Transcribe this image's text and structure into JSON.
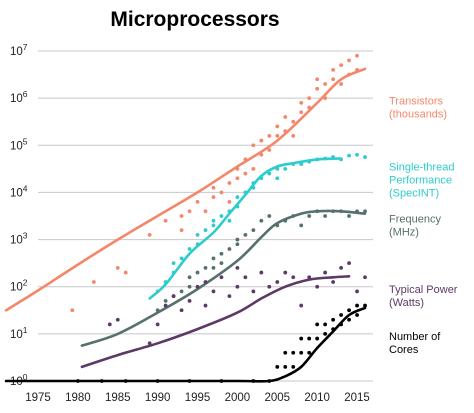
{
  "chart_data": {
    "type": "scatter",
    "title": "Microprocessors",
    "xlabel": "",
    "ylabel": "",
    "y_scale": "log",
    "xlim": [
      1975,
      2017
    ],
    "ylim_exponent": [
      0,
      7
    ],
    "grid": "horizontal",
    "legend": "right",
    "x_ticks": [
      "1975",
      "1980",
      "1985",
      "1990",
      "1995",
      "2000",
      "2005",
      "2010",
      "2015"
    ],
    "y_ticks": [
      {
        "base": "10",
        "exp": "0"
      },
      {
        "base": "10",
        "exp": "1"
      },
      {
        "base": "10",
        "exp": "2"
      },
      {
        "base": "10",
        "exp": "3"
      },
      {
        "base": "10",
        "exp": "4"
      },
      {
        "base": "10",
        "exp": "5"
      },
      {
        "base": "10",
        "exp": "6"
      },
      {
        "base": "10",
        "exp": "7"
      }
    ],
    "series": [
      {
        "name": "Transistors (thousands)",
        "label_lines": [
          "Transistors",
          "(thousands)"
        ],
        "color": "#f4876a",
        "trend": [
          [
            1971,
            1.5
          ],
          [
            1975,
            1.92
          ],
          [
            1980,
            2.47
          ],
          [
            1985,
            3.0
          ],
          [
            1990,
            3.5
          ],
          [
            1995,
            4.0
          ],
          [
            2000,
            4.55
          ],
          [
            2005,
            5.1
          ],
          [
            2010,
            5.9
          ],
          [
            2013,
            6.4
          ],
          [
            2016,
            6.62
          ]
        ],
        "points": [
          [
            1979.3,
            1.5
          ],
          [
            1982,
            2.1
          ],
          [
            1985,
            2.4
          ],
          [
            1986,
            2.3
          ],
          [
            1989,
            3.1
          ],
          [
            1991,
            3.4
          ],
          [
            1993,
            3.5
          ],
          [
            1993,
            3.2
          ],
          [
            1994,
            3.6
          ],
          [
            1995,
            3.8
          ],
          [
            1996,
            3.6
          ],
          [
            1997,
            3.9
          ],
          [
            1997,
            4.1
          ],
          [
            1998,
            4.0
          ],
          [
            1999,
            3.8
          ],
          [
            1999,
            4.2
          ],
          [
            2000,
            4.3
          ],
          [
            2000,
            4.5
          ],
          [
            2001,
            4.4
          ],
          [
            2001,
            4.7
          ],
          [
            2002,
            4.5
          ],
          [
            2002,
            5.0
          ],
          [
            2003,
            4.8
          ],
          [
            2003,
            5.1
          ],
          [
            2004,
            5.2
          ],
          [
            2004,
            4.9
          ],
          [
            2005,
            5.2
          ],
          [
            2005,
            5.4
          ],
          [
            2006,
            5.3
          ],
          [
            2006,
            5.6
          ],
          [
            2007,
            5.5
          ],
          [
            2007,
            5.2
          ],
          [
            2008,
            5.7
          ],
          [
            2008,
            5.9
          ],
          [
            2009,
            6.0
          ],
          [
            2009,
            5.8
          ],
          [
            2010,
            6.2
          ],
          [
            2010,
            6.4
          ],
          [
            2011,
            6.3
          ],
          [
            2011,
            6.0
          ],
          [
            2012,
            6.4
          ],
          [
            2012,
            6.6
          ],
          [
            2013,
            6.3
          ],
          [
            2013,
            6.7
          ],
          [
            2014,
            6.8
          ],
          [
            2014,
            6.5
          ],
          [
            2015,
            6.9
          ],
          [
            2015,
            6.6
          ]
        ]
      },
      {
        "name": "Single-thread Performance (SpecINT)",
        "label_lines": [
          "Single-thread",
          "Performance",
          "(SpecINT)"
        ],
        "color": "#2ecccc",
        "trend": [
          [
            1989,
            1.75
          ],
          [
            1991,
            2.05
          ],
          [
            1994,
            2.7
          ],
          [
            1997,
            3.15
          ],
          [
            1999,
            3.55
          ],
          [
            2001,
            3.95
          ],
          [
            2003,
            4.35
          ],
          [
            2005,
            4.55
          ],
          [
            2007,
            4.62
          ],
          [
            2010,
            4.7
          ],
          [
            2013,
            4.72
          ]
        ],
        "points": [
          [
            1990,
            1.9
          ],
          [
            1991,
            2.1
          ],
          [
            1992,
            2.3
          ],
          [
            1992,
            2.5
          ],
          [
            1993,
            2.6
          ],
          [
            1994,
            2.8
          ],
          [
            1995,
            2.9
          ],
          [
            1995,
            3.1
          ],
          [
            1996,
            3.2
          ],
          [
            1997,
            3.3
          ],
          [
            1997,
            3.4
          ],
          [
            1998,
            3.5
          ],
          [
            1999,
            3.6
          ],
          [
            1999,
            3.4
          ],
          [
            2000,
            3.7
          ],
          [
            2000,
            3.9
          ],
          [
            2001,
            4.0
          ],
          [
            2002,
            4.1
          ],
          [
            2002,
            4.2
          ],
          [
            2003,
            4.3
          ],
          [
            2004,
            4.4
          ],
          [
            2005,
            4.5
          ],
          [
            2005,
            4.3
          ],
          [
            2006,
            4.5
          ],
          [
            2007,
            4.6
          ],
          [
            2008,
            4.6
          ],
          [
            2009,
            4.65
          ],
          [
            2010,
            4.7
          ],
          [
            2011,
            4.72
          ],
          [
            2012,
            4.75
          ],
          [
            2013,
            4.7
          ],
          [
            2014,
            4.78
          ],
          [
            2015,
            4.8
          ],
          [
            2016,
            4.75
          ]
        ]
      },
      {
        "name": "Frequency (MHz)",
        "label_lines": [
          "Frequency",
          "(MHz)"
        ],
        "color": "#56706e",
        "trend": [
          [
            1980.5,
            0.75
          ],
          [
            1985,
            1.0
          ],
          [
            1990,
            1.45
          ],
          [
            1995,
            1.95
          ],
          [
            2000,
            2.55
          ],
          [
            2003,
            3.05
          ],
          [
            2005,
            3.35
          ],
          [
            2008,
            3.55
          ],
          [
            2010,
            3.6
          ],
          [
            2013,
            3.6
          ],
          [
            2016,
            3.55
          ]
        ],
        "points": [
          [
            1990,
            1.5
          ],
          [
            1991,
            1.7
          ],
          [
            1992,
            1.8
          ],
          [
            1993,
            1.9
          ],
          [
            1994,
            2.0
          ],
          [
            1994,
            2.2
          ],
          [
            1995,
            2.3
          ],
          [
            1996,
            2.4
          ],
          [
            1997,
            2.4
          ],
          [
            1997,
            2.6
          ],
          [
            1998,
            2.7
          ],
          [
            1998,
            2.5
          ],
          [
            1999,
            2.8
          ],
          [
            2000,
            2.9
          ],
          [
            2000,
            3.0
          ],
          [
            2001,
            3.1
          ],
          [
            2002,
            3.2
          ],
          [
            2003,
            3.4
          ],
          [
            2004,
            3.5
          ],
          [
            2005,
            3.3
          ],
          [
            2006,
            3.4
          ],
          [
            2007,
            3.5
          ],
          [
            2008,
            3.3
          ],
          [
            2009,
            3.5
          ],
          [
            2010,
            3.6
          ],
          [
            2011,
            3.5
          ],
          [
            2012,
            3.6
          ],
          [
            2013,
            3.6
          ],
          [
            2014,
            3.5
          ],
          [
            2015,
            3.6
          ],
          [
            2016,
            3.6
          ]
        ]
      },
      {
        "name": "Typical Power (Watts)",
        "label_lines": [
          "Typical Power",
          "(Watts)"
        ],
        "color": "#5c3966",
        "trend": [
          [
            1980.5,
            0.3
          ],
          [
            1985,
            0.55
          ],
          [
            1990,
            0.8
          ],
          [
            1995,
            1.1
          ],
          [
            2000,
            1.45
          ],
          [
            2003,
            1.75
          ],
          [
            2006,
            2.0
          ],
          [
            2009,
            2.15
          ],
          [
            2012,
            2.2
          ],
          [
            2014,
            2.22
          ]
        ],
        "points": [
          [
            1984,
            1.2
          ],
          [
            1985,
            1.3
          ],
          [
            1989,
            0.8
          ],
          [
            1990,
            1.2
          ],
          [
            1991,
            1.6
          ],
          [
            1992,
            1.8
          ],
          [
            1993,
            1.5
          ],
          [
            1994,
            1.7
          ],
          [
            1995,
            2.0
          ],
          [
            1996,
            1.6
          ],
          [
            1996,
            2.1
          ],
          [
            1997,
            1.9
          ],
          [
            1998,
            2.2
          ],
          [
            1999,
            1.8
          ],
          [
            2000,
            2.0
          ],
          [
            2000,
            2.4
          ],
          [
            2001,
            2.2
          ],
          [
            2002,
            1.9
          ],
          [
            2003,
            2.3
          ],
          [
            2004,
            2.0
          ],
          [
            2005,
            2.1
          ],
          [
            2006,
            2.3
          ],
          [
            2007,
            2.2
          ],
          [
            2008,
            1.6
          ],
          [
            2009,
            2.2
          ],
          [
            2010,
            2.0
          ],
          [
            2011,
            2.3
          ],
          [
            2012,
            2.1
          ],
          [
            2013,
            2.4
          ],
          [
            2014,
            2.5
          ],
          [
            2015,
            1.9
          ],
          [
            2016,
            2.2
          ]
        ]
      },
      {
        "name": "Number of Cores",
        "label_lines": [
          "Number of",
          "Cores"
        ],
        "color": "#000000",
        "trend": [
          [
            1971,
            0
          ],
          [
            1980,
            0
          ],
          [
            1990,
            0
          ],
          [
            2000,
            0
          ],
          [
            2004,
            0
          ],
          [
            2006,
            0.1
          ],
          [
            2008,
            0.3
          ],
          [
            2010,
            0.7
          ],
          [
            2012,
            1.05
          ],
          [
            2014,
            1.4
          ],
          [
            2016,
            1.55
          ]
        ],
        "points": [
          [
            1980,
            0
          ],
          [
            1983,
            0
          ],
          [
            1986,
            0
          ],
          [
            1990,
            0
          ],
          [
            1994,
            0
          ],
          [
            1998,
            0
          ],
          [
            2002,
            0
          ],
          [
            2004,
            0
          ],
          [
            2005,
            0.3
          ],
          [
            2006,
            0.3
          ],
          [
            2006,
            0.6
          ],
          [
            2007,
            0.3
          ],
          [
            2007,
            0.6
          ],
          [
            2008,
            0.6
          ],
          [
            2008,
            0.9
          ],
          [
            2009,
            0.6
          ],
          [
            2009,
            0.9
          ],
          [
            2010,
            0.9
          ],
          [
            2010,
            1.2
          ],
          [
            2011,
            1.0
          ],
          [
            2011,
            1.2
          ],
          [
            2012,
            1.1
          ],
          [
            2012,
            1.3
          ],
          [
            2013,
            1.4
          ],
          [
            2013,
            1.2
          ],
          [
            2014,
            1.5
          ],
          [
            2014,
            1.3
          ],
          [
            2015,
            1.6
          ],
          [
            2015,
            1.4
          ],
          [
            2016,
            1.6
          ]
        ]
      }
    ]
  }
}
